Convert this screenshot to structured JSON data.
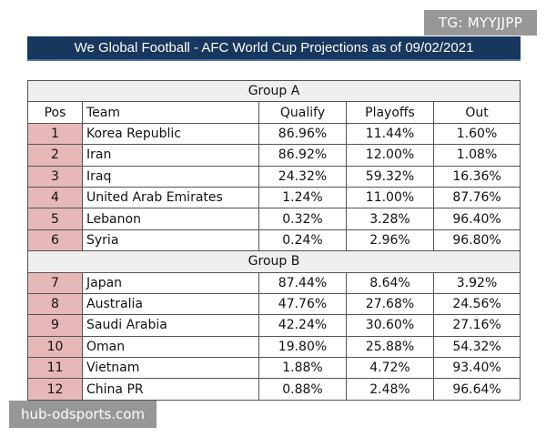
{
  "watermarks": {
    "top": "TG: MYYJJPP",
    "bottom": "hub-odsports.com"
  },
  "title": "We Global Football - AFC World Cup Projections as of 09/02/2021",
  "columns": [
    "Pos",
    "Team",
    "Qualify",
    "Playoffs",
    "Out"
  ],
  "groups": [
    {
      "name": "Group A",
      "rows": [
        {
          "pos": "1",
          "team": "Korea Republic",
          "qualify": "86.96%",
          "playoffs": "11.44%",
          "out": "1.60%"
        },
        {
          "pos": "2",
          "team": "Iran",
          "qualify": "86.92%",
          "playoffs": "12.00%",
          "out": "1.08%"
        },
        {
          "pos": "3",
          "team": "Iraq",
          "qualify": "24.32%",
          "playoffs": "59.32%",
          "out": "16.36%"
        },
        {
          "pos": "4",
          "team": "United Arab Emirates",
          "qualify": "1.24%",
          "playoffs": "11.00%",
          "out": "87.76%"
        },
        {
          "pos": "5",
          "team": "Lebanon",
          "qualify": "0.32%",
          "playoffs": "3.28%",
          "out": "96.40%"
        },
        {
          "pos": "6",
          "team": "Syria",
          "qualify": "0.24%",
          "playoffs": "2.96%",
          "out": "96.80%"
        }
      ]
    },
    {
      "name": "Group B",
      "rows": [
        {
          "pos": "7",
          "team": "Japan",
          "qualify": "87.44%",
          "playoffs": "8.64%",
          "out": "3.92%"
        },
        {
          "pos": "8",
          "team": "Australia",
          "qualify": "47.76%",
          "playoffs": "27.68%",
          "out": "24.56%"
        },
        {
          "pos": "9",
          "team": "Saudi Arabia",
          "qualify": "42.24%",
          "playoffs": "30.60%",
          "out": "27.16%"
        },
        {
          "pos": "10",
          "team": "Oman",
          "qualify": "19.80%",
          "playoffs": "25.88%",
          "out": "54.32%"
        },
        {
          "pos": "11",
          "team": "Vietnam",
          "qualify": "1.88%",
          "playoffs": "4.72%",
          "out": "93.40%"
        },
        {
          "pos": "12",
          "team": "China PR",
          "qualify": "0.88%",
          "playoffs": "2.48%",
          "out": "96.64%"
        }
      ]
    }
  ],
  "colors": {
    "title_bg": "#17375e",
    "pos_bg": "#e6b8b7",
    "group_bg": "#efefef"
  }
}
